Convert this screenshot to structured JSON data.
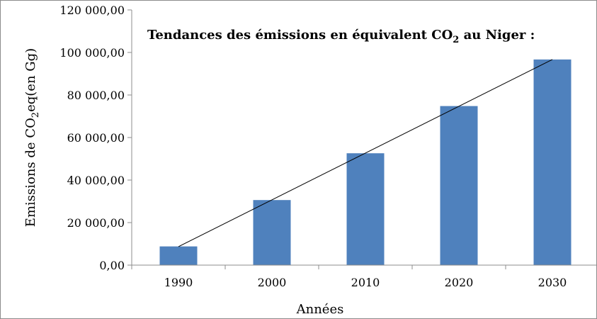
{
  "chart_data": {
    "type": "bar",
    "title_main": "Tendances des émissions en équivalent CO",
    "title_sub": "2",
    "title_end": " au Niger :",
    "categories": [
      "1990",
      "2000",
      "2010",
      "2020",
      "2030"
    ],
    "values": [
      8800,
      30600,
      52600,
      74800,
      96700
    ],
    "ylim": [
      0,
      120000
    ],
    "yticks": [
      "0,00",
      "20 000,00",
      "40 000,00",
      "60 000,00",
      "80 000,00",
      "100 000,00",
      "120 000,00"
    ],
    "xlabel": "Années",
    "ylabel_main": "Emissions de CO",
    "ylabel_sub": "2",
    "ylabel_end": "eq(en Gg)",
    "trendline": true,
    "bar_color": "#4f81bd",
    "trend_color": "#000000",
    "grid": false
  }
}
